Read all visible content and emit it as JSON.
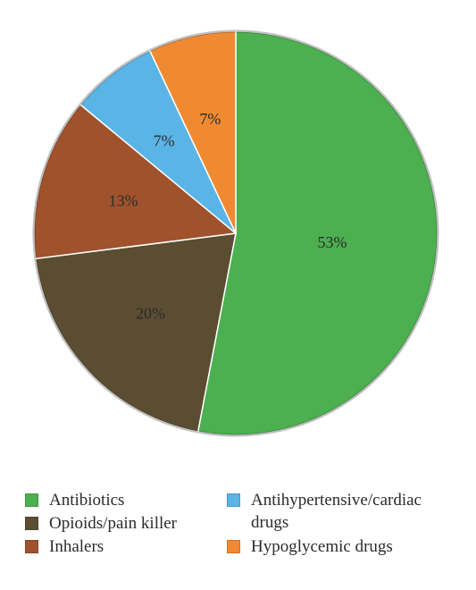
{
  "chart_data": {
    "type": "pie",
    "title": "",
    "slices": [
      {
        "name": "Antibiotics",
        "value": 53,
        "label": "53%",
        "color": "#4caf50"
      },
      {
        "name": "Opioids/pain killer",
        "value": 20,
        "label": "20%",
        "color": "#5b4d31"
      },
      {
        "name": "Inhalers",
        "value": 13,
        "label": "13%",
        "color": "#a0522d"
      },
      {
        "name": "Antihypertensive/cardiac drugs",
        "value": 7,
        "label": "7%",
        "color": "#5ab4e5"
      },
      {
        "name": "Hypoglycemic drugs",
        "value": 7,
        "label": "7%",
        "color": "#f08a32"
      }
    ],
    "legend_placement": "bottom",
    "start": "top, clockwise"
  },
  "legend": [
    {
      "label": "Antibiotics",
      "color": "#4caf50"
    },
    {
      "label": "Opioids/pain killer",
      "color": "#5b4d31"
    },
    {
      "label": "Inhalers",
      "color": "#a0522d"
    },
    {
      "label": "Antihypertensive/cardiac\ndrugs",
      "color": "#5ab4e5"
    },
    {
      "label": "Hypoglycemic drugs",
      "color": "#f08a32"
    }
  ]
}
